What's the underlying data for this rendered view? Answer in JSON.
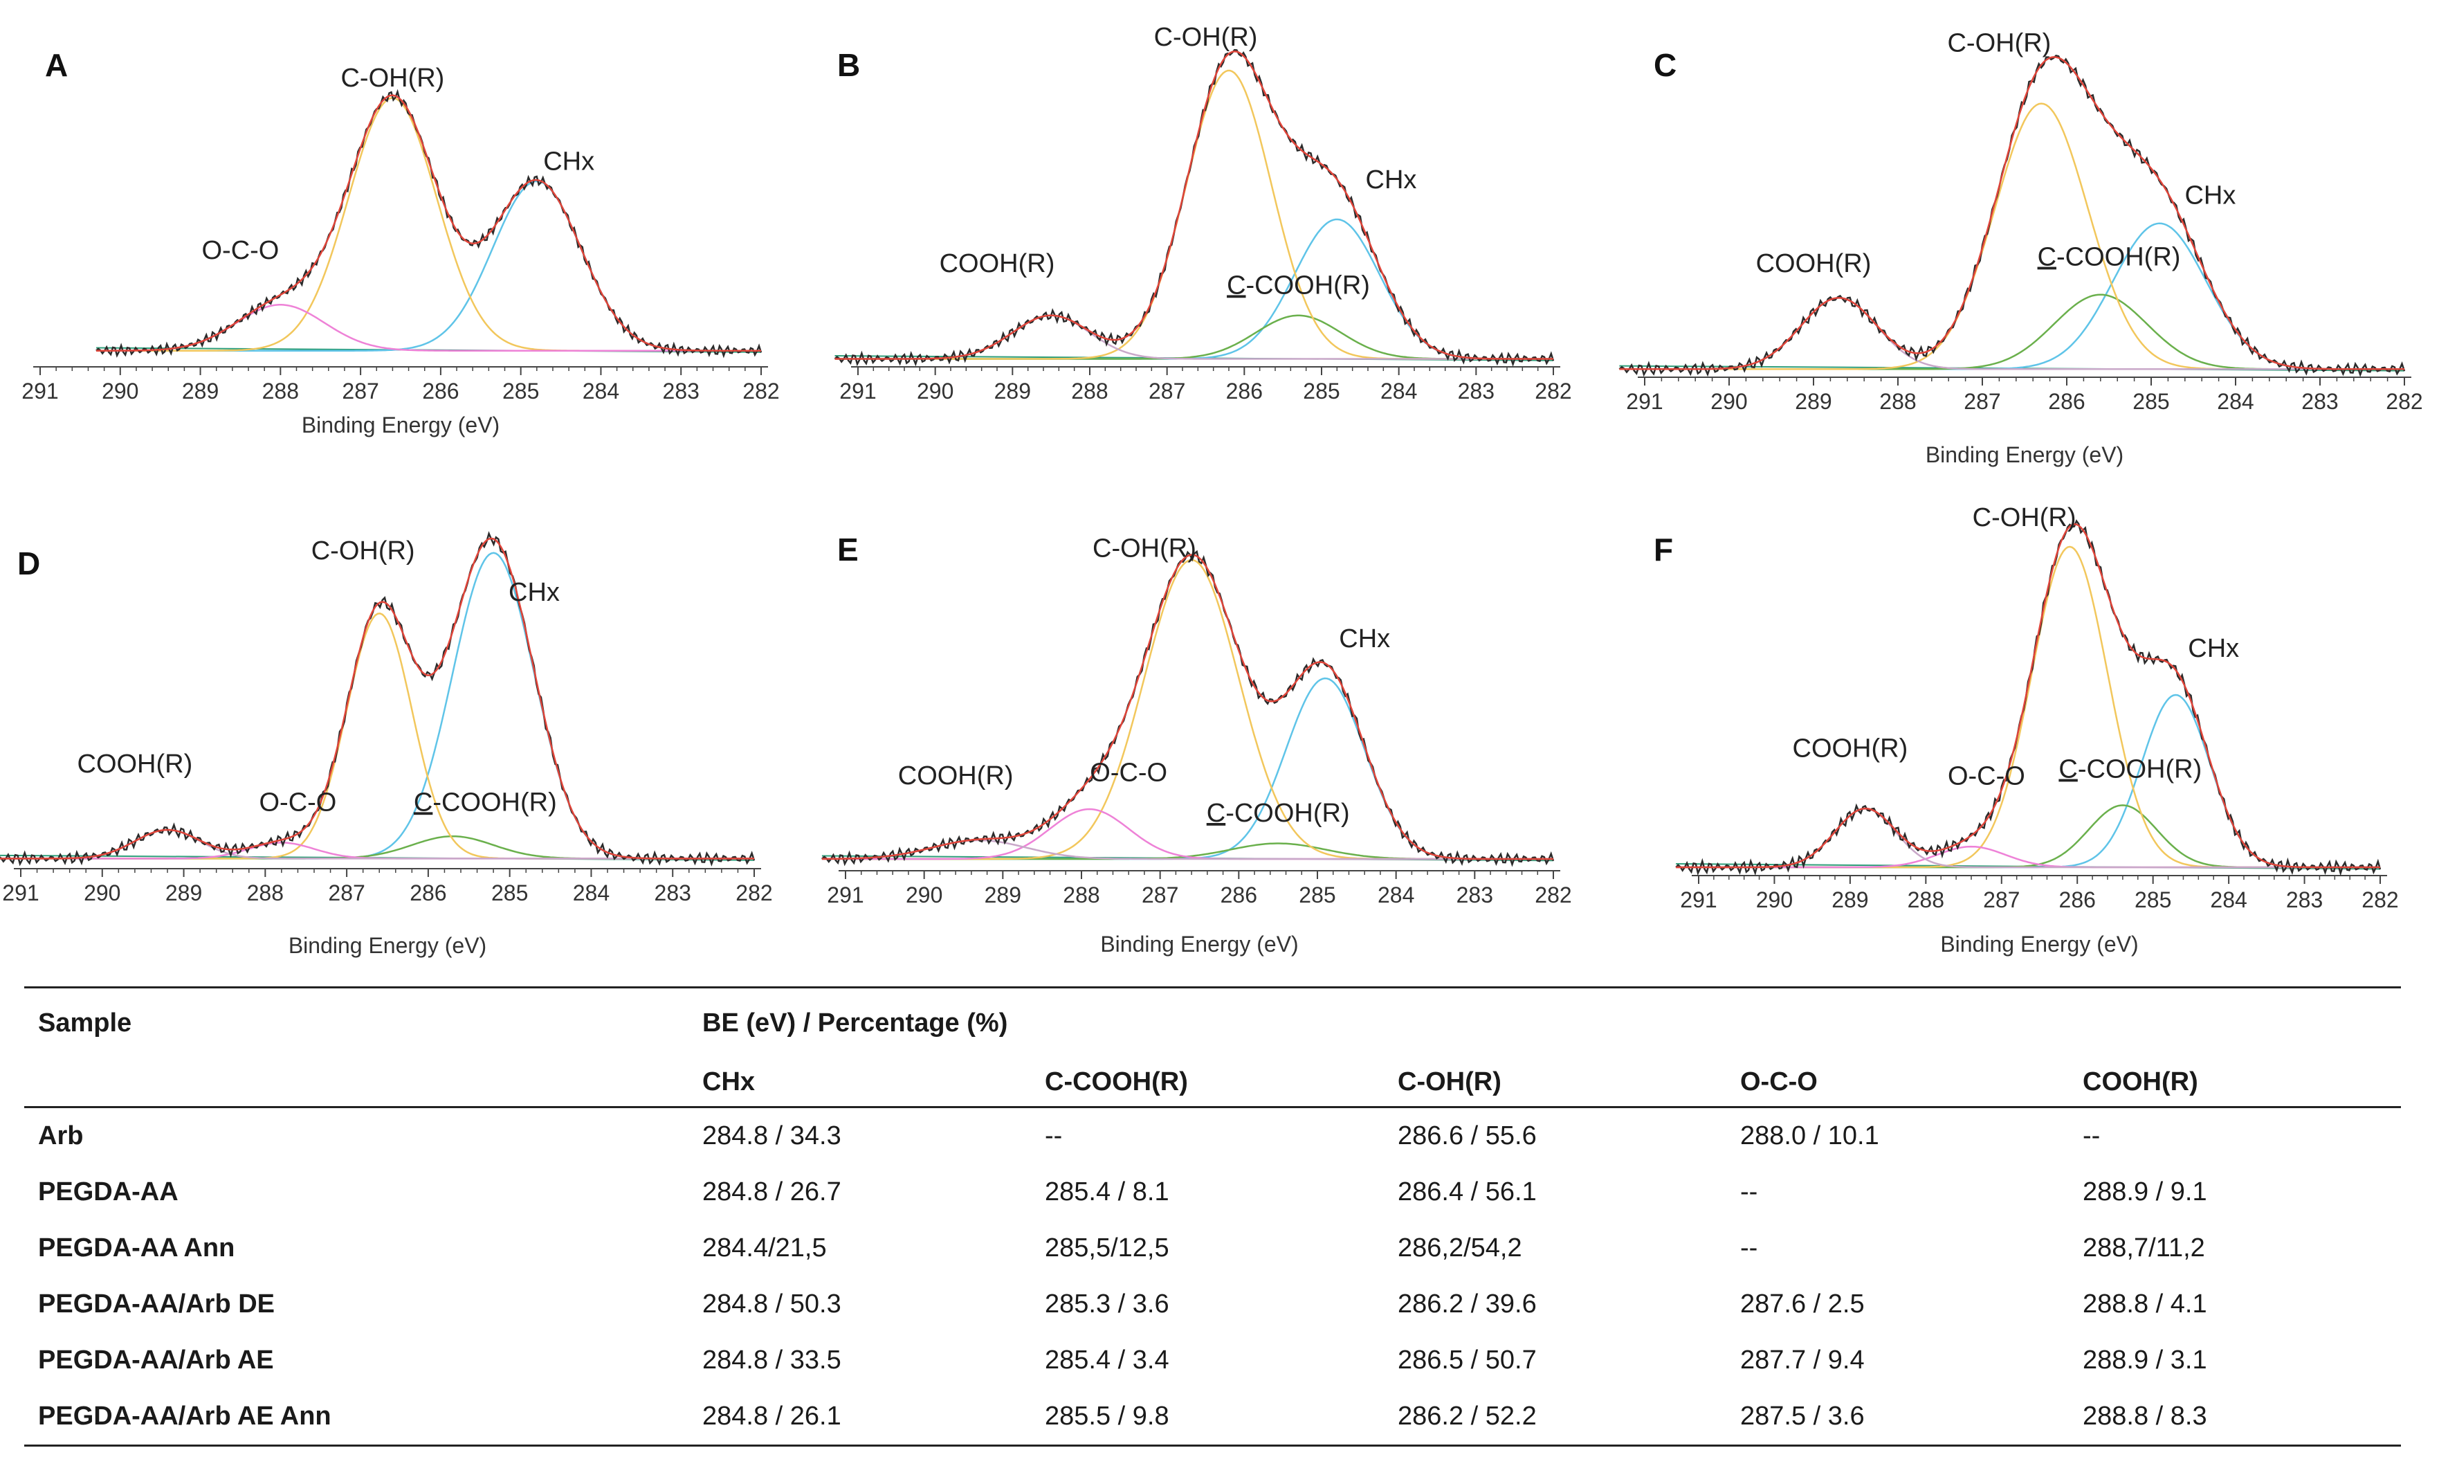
{
  "chart_data": [
    {
      "panel": "A",
      "type": "line",
      "xlabel": "Binding Energy (eV)",
      "xlim": [
        291,
        282
      ],
      "x_reversed": true,
      "ticks": [
        291,
        290,
        289,
        288,
        287,
        286,
        285,
        284,
        283,
        282
      ],
      "x_start": 290.3,
      "x_end": 282,
      "baseline": 0.02,
      "ymax": 1.0,
      "series": [
        {
          "name": "CHx",
          "center": 284.8,
          "height": 0.59,
          "width": 0.55
        },
        {
          "name": "C-OH(R)",
          "center": 286.6,
          "height": 0.88,
          "width": 0.55
        },
        {
          "name": "O-C-O",
          "center": 288.0,
          "height": 0.16,
          "width": 0.55
        }
      ],
      "labels": [
        {
          "text": "C-OH(R)",
          "x": 286.6,
          "y": 0.94
        },
        {
          "text": "CHx",
          "x": 284.4,
          "y": 0.65
        },
        {
          "text": "O-C-O",
          "x": 288.5,
          "y": 0.34
        }
      ]
    },
    {
      "panel": "B",
      "type": "line",
      "xlabel": "Binding Energy (eV)",
      "xlim": [
        291,
        282
      ],
      "x_reversed": true,
      "ticks": [
        291,
        290,
        289,
        288,
        287,
        286,
        285,
        284,
        283,
        282
      ],
      "x_start": 291.3,
      "x_end": 282,
      "baseline": 0.01,
      "ymax": 1.0,
      "series": [
        {
          "name": "CHx",
          "center": 284.8,
          "height": 0.45,
          "width": 0.55
        },
        {
          "name": "C-COOH(R)",
          "center": 285.3,
          "height": 0.14,
          "width": 0.55
        },
        {
          "name": "C-OH(R)",
          "center": 286.2,
          "height": 0.93,
          "width": 0.55
        },
        {
          "name": "COOH(R)",
          "center": 288.5,
          "height": 0.14,
          "width": 0.5
        }
      ],
      "labels": [
        {
          "text": "C-OH(R)",
          "x": 286.5,
          "y": 1.02
        },
        {
          "text": "CHx",
          "x": 284.1,
          "y": 0.56
        },
        {
          "text": "COOH(R)",
          "x": 289.2,
          "y": 0.29
        },
        {
          "text": "C-COOH(R)",
          "x": 285.3,
          "y": 0.22,
          "underline_first": true
        }
      ]
    },
    {
      "panel": "C",
      "type": "line",
      "xlabel": "Binding Energy (eV)",
      "xlim": [
        291,
        282
      ],
      "x_reversed": true,
      "ticks": [
        291,
        290,
        289,
        288,
        287,
        286,
        285,
        284,
        283,
        282
      ],
      "x_start": 291.3,
      "x_end": 282,
      "baseline": 0.01,
      "ymax": 1.0,
      "series": [
        {
          "name": "CHx",
          "center": 284.9,
          "height": 0.45,
          "width": 0.55
        },
        {
          "name": "C-COOH(R)",
          "center": 285.6,
          "height": 0.23,
          "width": 0.55
        },
        {
          "name": "C-OH(R)",
          "center": 286.3,
          "height": 0.82,
          "width": 0.55
        },
        {
          "name": "COOH(R)",
          "center": 288.7,
          "height": 0.22,
          "width": 0.45
        }
      ],
      "labels": [
        {
          "text": "C-OH(R)",
          "x": 286.8,
          "y": 0.99
        },
        {
          "text": "CHx",
          "x": 284.3,
          "y": 0.52
        },
        {
          "text": "COOH(R)",
          "x": 289.0,
          "y": 0.31
        },
        {
          "text": "C-COOH(R)",
          "x": 285.5,
          "y": 0.33,
          "underline_first": true
        }
      ]
    },
    {
      "panel": "D",
      "type": "line",
      "xlabel": "Binding Energy (eV)",
      "xlim": [
        291,
        282
      ],
      "x_reversed": true,
      "ticks": [
        291,
        290,
        289,
        288,
        287,
        286,
        285,
        284,
        283,
        282
      ],
      "x_start": 291.3,
      "x_end": 282,
      "baseline": 0.01,
      "ymax": 1.0,
      "series": [
        {
          "name": "CHx",
          "center": 285.2,
          "height": 0.96,
          "width": 0.5
        },
        {
          "name": "C-COOH(R)",
          "center": 285.7,
          "height": 0.07,
          "width": 0.5
        },
        {
          "name": "C-OH(R)",
          "center": 286.6,
          "height": 0.77,
          "width": 0.4
        },
        {
          "name": "O-C-O",
          "center": 287.8,
          "height": 0.05,
          "width": 0.4
        },
        {
          "name": "COOH(R)",
          "center": 289.2,
          "height": 0.09,
          "width": 0.4
        }
      ],
      "labels": [
        {
          "text": "C-OH(R)",
          "x": 286.8,
          "y": 0.95
        },
        {
          "text": "CHx",
          "x": 284.7,
          "y": 0.82
        },
        {
          "text": "COOH(R)",
          "x": 289.6,
          "y": 0.28
        },
        {
          "text": "O-C-O",
          "x": 287.6,
          "y": 0.16
        },
        {
          "text": "C-COOH(R)",
          "x": 285.3,
          "y": 0.16,
          "underline_first": true
        }
      ]
    },
    {
      "panel": "E",
      "type": "line",
      "xlabel": "Binding Energy (eV)",
      "xlim": [
        291,
        282
      ],
      "x_reversed": true,
      "ticks": [
        291,
        290,
        289,
        288,
        287,
        286,
        285,
        284,
        283,
        282
      ],
      "x_start": 291.3,
      "x_end": 282,
      "baseline": 0.02,
      "ymax": 1.0,
      "series": [
        {
          "name": "CHx",
          "center": 284.9,
          "height": 0.58,
          "width": 0.5
        },
        {
          "name": "C-COOH(R)",
          "center": 285.5,
          "height": 0.05,
          "width": 0.6
        },
        {
          "name": "C-OH(R)",
          "center": 286.6,
          "height": 0.96,
          "width": 0.6
        },
        {
          "name": "O-C-O",
          "center": 287.9,
          "height": 0.16,
          "width": 0.5
        },
        {
          "name": "COOH(R)",
          "center": 289.3,
          "height": 0.06,
          "width": 0.6
        }
      ],
      "labels": [
        {
          "text": "C-OH(R)",
          "x": 287.2,
          "y": 0.99
        },
        {
          "text": "CHx",
          "x": 284.4,
          "y": 0.7
        },
        {
          "text": "COOH(R)",
          "x": 289.6,
          "y": 0.26
        },
        {
          "text": "O-C-O",
          "x": 287.4,
          "y": 0.27
        },
        {
          "text": "C-COOH(R)",
          "x": 285.5,
          "y": 0.14,
          "underline_first": true
        }
      ]
    },
    {
      "panel": "F",
      "type": "line",
      "xlabel": "Binding Energy (eV)",
      "xlim": [
        291,
        282
      ],
      "x_reversed": true,
      "ticks": [
        291,
        290,
        289,
        288,
        287,
        286,
        285,
        284,
        283,
        282
      ],
      "x_start": 291.3,
      "x_end": 282,
      "baseline": 0.01,
      "ymax": 1.0,
      "series": [
        {
          "name": "CHx",
          "center": 284.7,
          "height": 0.5,
          "width": 0.45
        },
        {
          "name": "C-COOH(R)",
          "center": 285.4,
          "height": 0.18,
          "width": 0.45
        },
        {
          "name": "C-OH(R)",
          "center": 286.1,
          "height": 0.93,
          "width": 0.5
        },
        {
          "name": "O-C-O",
          "center": 287.4,
          "height": 0.06,
          "width": 0.45
        },
        {
          "name": "COOH(R)",
          "center": 288.8,
          "height": 0.17,
          "width": 0.4
        }
      ],
      "labels": [
        {
          "text": "C-OH(R)",
          "x": 286.7,
          "y": 1.0
        },
        {
          "text": "CHx",
          "x": 284.2,
          "y": 0.62
        },
        {
          "text": "COOH(R)",
          "x": 289.0,
          "y": 0.33
        },
        {
          "text": "O-C-O",
          "x": 287.2,
          "y": 0.25
        },
        {
          "text": "C-COOH(R)",
          "x": 285.3,
          "y": 0.27,
          "underline_first": true
        }
      ]
    }
  ],
  "colors": {
    "C-OH(R)": "#f2c75c",
    "CHx": "#5fc4e8",
    "O-C-O": "#ee82d7",
    "COOH(R)": "#c9a8c9",
    "C-COOH(R)": "#6ab04c",
    "envelope": "#e0453a",
    "raw": "#2b2b2b",
    "background": "#2e9e7a",
    "axis": "#444444"
  },
  "table": {
    "sample_header": "Sample",
    "group_header": "BE (eV) / Percentage (%)",
    "columns": [
      "CHx",
      "C-COOH(R)",
      "C-OH(R)",
      "O-C-O",
      "COOH(R)"
    ],
    "rows": [
      {
        "sample": "Arb",
        "values": [
          "284.8 / 34.3",
          "--",
          "286.6 / 55.6",
          "288.0 / 10.1",
          "--"
        ]
      },
      {
        "sample": "PEGDA-AA",
        "values": [
          "284.8 / 26.7",
          "285.4 / 8.1",
          "286.4 / 56.1",
          "--",
          "288.9 / 9.1"
        ]
      },
      {
        "sample": "PEGDA-AA Ann",
        "values": [
          "284.4/21,5",
          "285,5/12,5",
          "286,2/54,2",
          "--",
          "288,7/11,2"
        ]
      },
      {
        "sample": "PEGDA-AA/Arb DE",
        "values": [
          "284.8 / 50.3",
          "285.3 / 3.6",
          "286.2 / 39.6",
          "287.6 / 2.5",
          "288.8 / 4.1"
        ]
      },
      {
        "sample": "PEGDA-AA/Arb AE",
        "values": [
          "284.8 / 33.5",
          "285.4 / 3.4",
          "286.5 / 50.7",
          "287.7 / 9.4",
          "288.9 / 3.1"
        ]
      },
      {
        "sample": "PEGDA-AA/Arb AE Ann",
        "values": [
          "284.8 / 26.1",
          "285.5 / 9.8",
          "286.2 / 52.2",
          "287.5 / 3.6",
          "288.8 / 8.3"
        ]
      }
    ]
  }
}
